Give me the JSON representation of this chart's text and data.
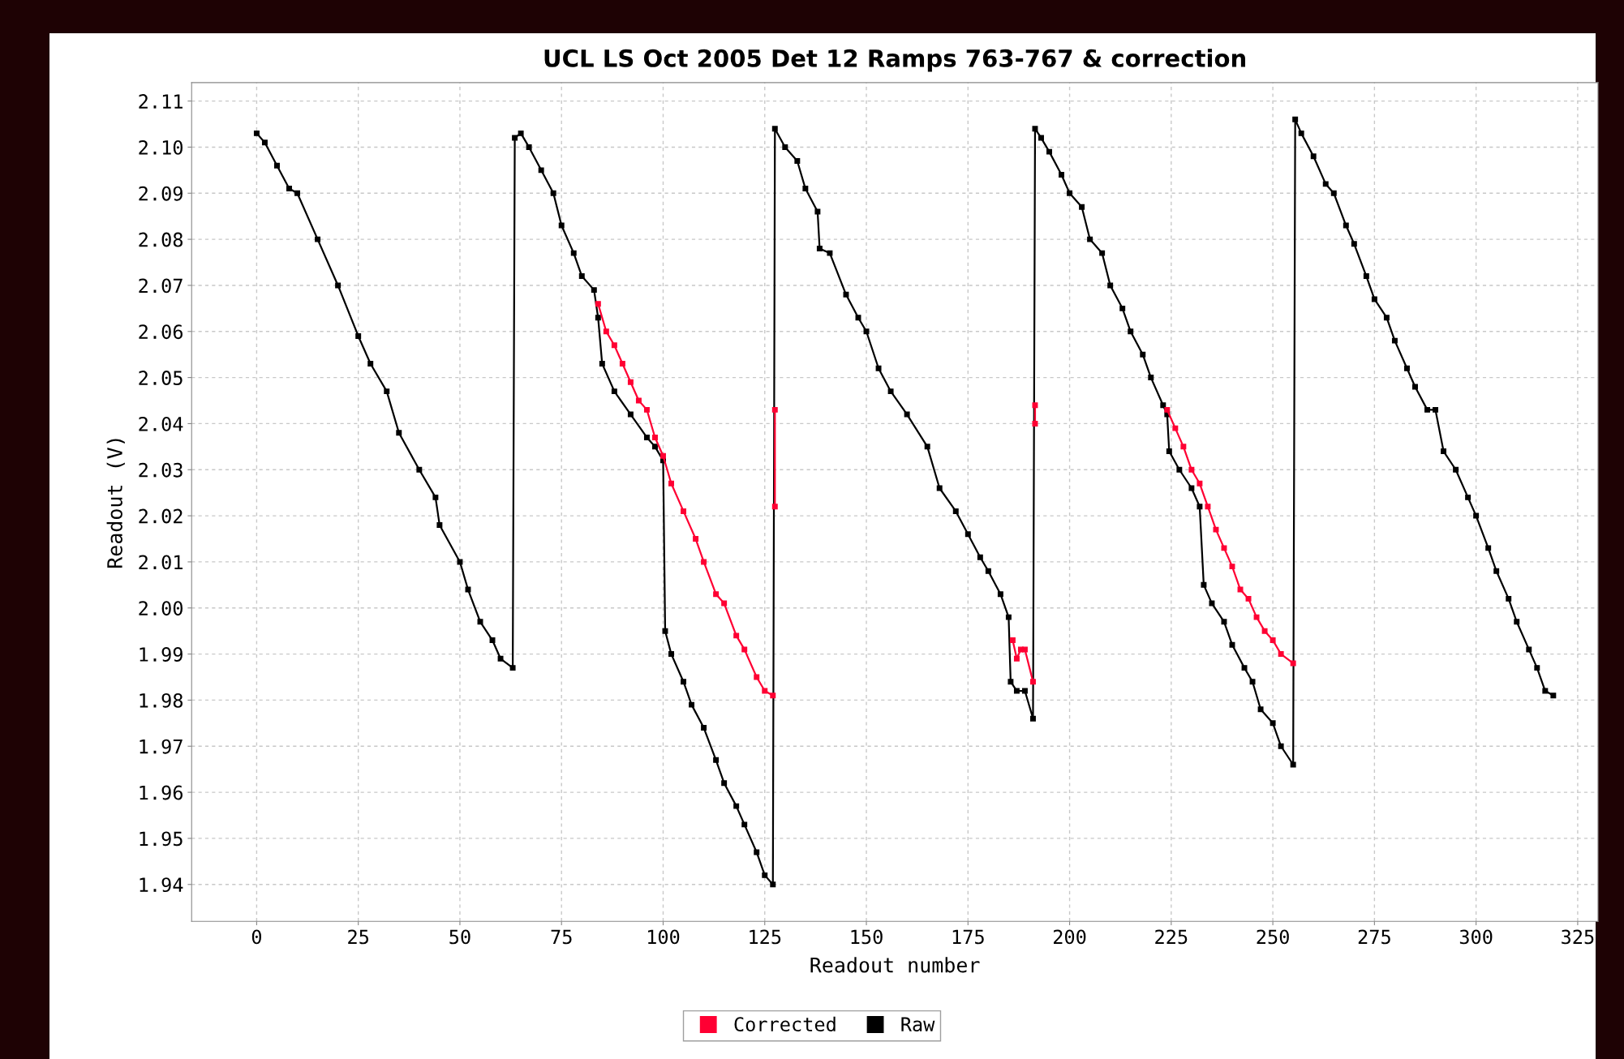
{
  "chart_data": {
    "type": "line",
    "title": "UCL LS Oct 2005 Det 12 Ramps 763-767 & correction",
    "xlabel": "Readout number",
    "ylabel": "Readout (V)",
    "series": [
      {
        "name": "Corrected",
        "color": "#ff0033",
        "x": [
          84,
          86,
          88,
          90,
          92,
          94,
          96,
          98,
          100,
          102,
          105,
          108,
          110,
          113,
          115,
          118,
          120,
          123,
          125,
          127,
          127.2,
          127.5,
          127.5,
          127.8,
          186,
          187,
          188,
          189,
          191,
          191.2,
          191.5,
          191.5,
          191.8,
          224,
          226,
          228,
          230,
          232,
          234,
          236,
          238,
          240,
          242,
          244,
          246,
          248,
          250,
          252,
          255
        ],
        "values": [
          2.066,
          2.06,
          2.057,
          2.053,
          2.049,
          2.045,
          2.043,
          2.037,
          2.033,
          2.027,
          2.021,
          2.015,
          2.01,
          2.003,
          2.001,
          1.994,
          1.991,
          1.985,
          1.982,
          1.981,
          null,
          2.022,
          2.043,
          null,
          1.993,
          1.989,
          1.991,
          1.991,
          1.984,
          null,
          2.04,
          2.044,
          null,
          2.043,
          2.039,
          2.035,
          2.03,
          2.027,
          2.022,
          2.017,
          2.013,
          2.009,
          2.004,
          2.002,
          1.998,
          1.995,
          1.993,
          1.99,
          1.988
        ]
      },
      {
        "name": "Raw",
        "color": "#000000",
        "x": [
          0,
          2,
          5,
          8,
          10,
          15,
          20,
          25,
          28,
          32,
          35,
          40,
          44,
          45,
          50,
          52,
          55,
          58,
          60,
          63,
          63.5,
          65,
          67,
          70,
          73,
          75,
          78,
          80,
          83,
          84,
          85,
          88,
          92,
          96,
          98,
          100,
          100.5,
          102,
          105,
          107,
          110,
          113,
          115,
          118,
          120,
          123,
          125,
          127,
          127.5,
          130,
          133,
          135,
          138,
          138.5,
          141,
          145,
          148,
          150,
          153,
          156,
          160,
          165,
          168,
          172,
          175,
          178,
          180,
          183,
          185,
          185.5,
          187,
          189,
          191,
          191.5,
          193,
          195,
          198,
          200,
          203,
          205,
          208,
          210,
          213,
          215,
          218,
          220,
          223,
          224,
          224.5,
          227,
          230,
          232,
          233,
          235,
          238,
          240,
          243,
          245,
          247,
          250,
          252,
          255,
          255.5,
          257,
          260,
          263,
          265,
          268,
          270,
          273,
          275,
          278,
          280,
          283,
          285,
          288,
          290,
          292,
          295,
          298,
          300,
          303,
          305,
          308,
          310,
          313,
          315,
          317,
          319
        ],
        "values": [
          2.103,
          2.101,
          2.096,
          2.091,
          2.09,
          2.08,
          2.07,
          2.059,
          2.053,
          2.047,
          2.038,
          2.03,
          2.024,
          2.018,
          2.01,
          2.004,
          1.997,
          1.993,
          1.989,
          1.987,
          2.102,
          2.103,
          2.1,
          2.095,
          2.09,
          2.083,
          2.077,
          2.072,
          2.069,
          2.063,
          2.053,
          2.047,
          2.042,
          2.037,
          2.035,
          2.032,
          1.995,
          1.99,
          1.984,
          1.979,
          1.974,
          1.967,
          1.962,
          1.957,
          1.953,
          1.947,
          1.942,
          1.94,
          2.104,
          2.1,
          2.097,
          2.091,
          2.086,
          2.078,
          2.077,
          2.068,
          2.063,
          2.06,
          2.052,
          2.047,
          2.042,
          2.035,
          2.026,
          2.021,
          2.016,
          2.011,
          2.008,
          2.003,
          1.998,
          1.984,
          1.982,
          1.982,
          1.976,
          2.104,
          2.102,
          2.099,
          2.094,
          2.09,
          2.087,
          2.08,
          2.077,
          2.07,
          2.065,
          2.06,
          2.055,
          2.05,
          2.044,
          2.042,
          2.034,
          2.03,
          2.026,
          2.022,
          2.005,
          2.001,
          1.997,
          1.992,
          1.987,
          1.984,
          1.978,
          1.975,
          1.97,
          1.966,
          2.106,
          2.103,
          2.098,
          2.092,
          2.09,
          2.083,
          2.079,
          2.072,
          2.067,
          2.063,
          2.058,
          2.052,
          2.048,
          2.043,
          2.043,
          2.034,
          2.03,
          2.024,
          2.02,
          2.013,
          2.008,
          2.002,
          1.997,
          1.991,
          1.987,
          1.982,
          1.981
        ]
      }
    ],
    "xlim": [
      -16,
      330
    ],
    "xticks": [
      0,
      25,
      50,
      75,
      100,
      125,
      150,
      175,
      200,
      225,
      250,
      275,
      300,
      325
    ],
    "ylim": [
      1.932,
      2.114
    ],
    "yticks": [
      1.94,
      1.95,
      1.96,
      1.97,
      1.98,
      1.99,
      {
        "value": 2.0,
        "label": "2.00"
      },
      2.01,
      2.02,
      2.03,
      2.04,
      2.05,
      2.06,
      2.07,
      2.08,
      2.09,
      {
        "value": 2.1,
        "label": "2.10"
      },
      2.11
    ],
    "grid": true,
    "legend": "bottom",
    "marker": "square",
    "line_style": "solid"
  }
}
